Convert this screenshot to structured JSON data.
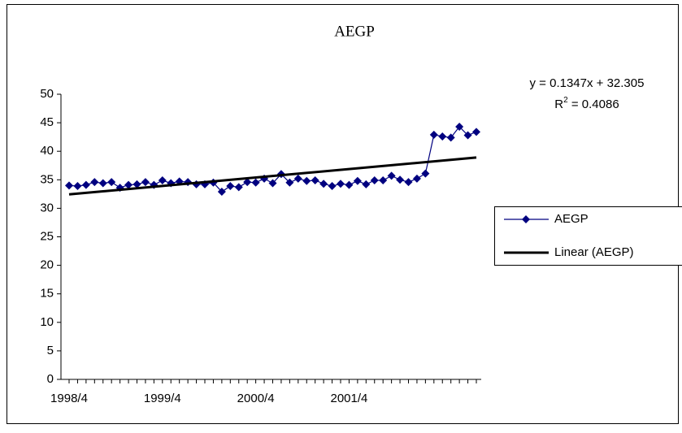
{
  "chart_data": {
    "type": "line",
    "title": "AEGP",
    "categories": [
      "1998/4",
      null,
      null,
      null,
      null,
      null,
      null,
      null,
      null,
      null,
      null,
      "1999/4",
      null,
      null,
      null,
      null,
      null,
      null,
      null,
      null,
      null,
      null,
      "2000/4",
      null,
      null,
      null,
      null,
      null,
      null,
      null,
      null,
      null,
      null,
      "2001/4",
      null,
      null,
      null,
      null,
      null,
      null,
      null,
      null,
      null,
      null,
      null,
      null,
      null,
      null,
      null
    ],
    "series": [
      {
        "name": "AEGP",
        "color": "#000080",
        "values": [
          34,
          33.9,
          34.1,
          34.6,
          34.4,
          34.6,
          33.6,
          34.1,
          34.2,
          34.6,
          34.1,
          34.9,
          34.4,
          34.7,
          34.6,
          34.2,
          34.2,
          34.5,
          32.9,
          33.9,
          33.7,
          34.6,
          34.5,
          35.2,
          34.4,
          36,
          34.5,
          35.2,
          34.8,
          34.9,
          34.3,
          33.9,
          34.3,
          34.1,
          34.8,
          34.2,
          34.9,
          34.9,
          35.7,
          35,
          34.6,
          35.2,
          36.1,
          42.9,
          42.6,
          42.4,
          44.3,
          42.8,
          43.4
        ]
      }
    ],
    "trendline": {
      "name": "Linear (AEGP)",
      "color": "#000000",
      "slope": 0.1347,
      "intercept": 32.305,
      "equation": "y = 0.1347x + 32.305",
      "r2_label": "R",
      "r2_sup": "2",
      "r2_value": " = 0.4086"
    },
    "ylim": [
      0,
      50
    ],
    "yticks": [
      0,
      5,
      10,
      15,
      20,
      25,
      30,
      35,
      40,
      45,
      50
    ],
    "grid": false,
    "legend": "right"
  }
}
